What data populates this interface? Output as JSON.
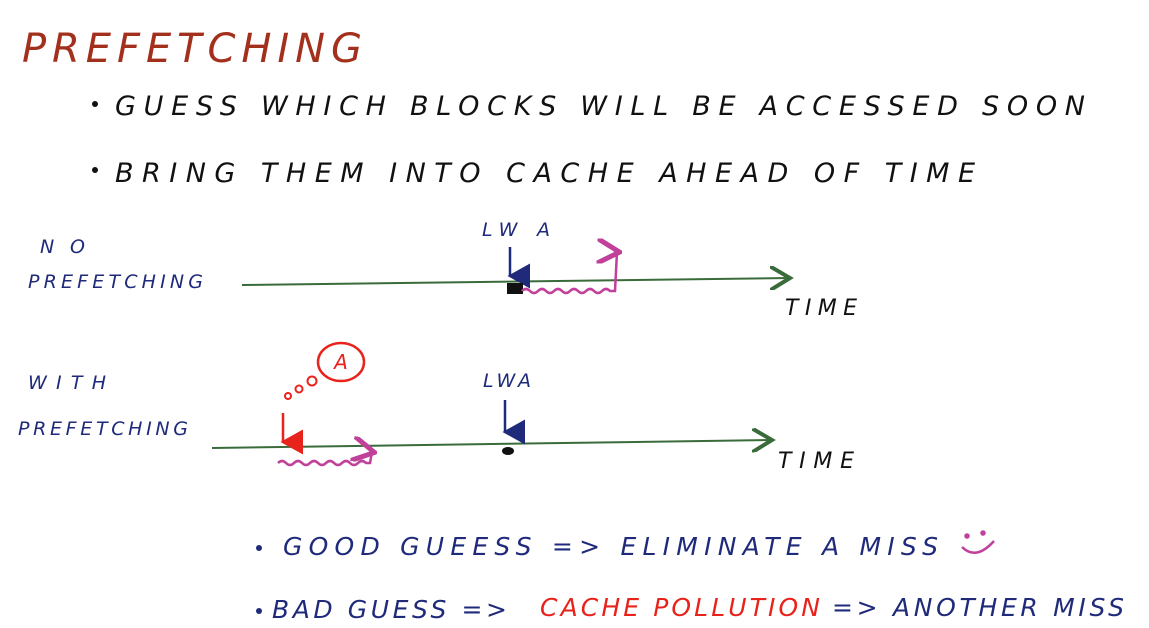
{
  "title": "PREFETCHING",
  "bullets": [
    "GUESS WHICH BLOCKS WILL BE ACCESSED SOON",
    "BRING THEM INTO CACHE AHEAD OF TIME"
  ],
  "timelines": [
    {
      "label": [
        "NO",
        "PREFETCHING"
      ],
      "access": "LW A",
      "axis_label": "TIME"
    },
    {
      "label": [
        "WITH",
        "PREFETCHING"
      ],
      "prefetch": "A",
      "access": "LWA",
      "axis_label": "TIME"
    }
  ],
  "outcomes": [
    {
      "parts": [
        "GOOD GUEESS => ELIMINATE A MISS"
      ]
    },
    {
      "parts": [
        "BAD GUESS =>",
        "CACHE POLLUTION",
        "=> ANOTHER MISS"
      ]
    }
  ]
}
